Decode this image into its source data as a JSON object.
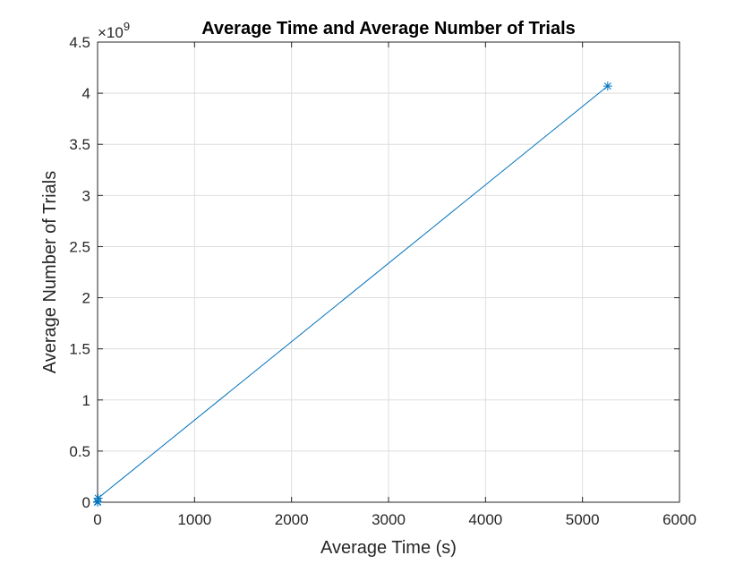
{
  "chart_data": {
    "type": "line",
    "title": "Average Time and Average Number of Trials",
    "xlabel": "Average Time (s)",
    "ylabel": "Average Number of Trials",
    "y_exponent_base": "×10",
    "y_exponent_power": "9",
    "xlim": [
      0,
      6000
    ],
    "ylim": [
      0,
      4.5
    ],
    "y_scale": 1000000000,
    "x_ticks": [
      "0",
      "1000",
      "2000",
      "3000",
      "4000",
      "5000",
      "6000"
    ],
    "y_ticks": [
      "0",
      "0.5",
      "1",
      "1.5",
      "2",
      "2.5",
      "3",
      "3.5",
      "4",
      "4.5"
    ],
    "grid": true,
    "marker": "asterisk",
    "color": "#0072BD",
    "series": [
      {
        "x": [
          0.005,
          0.05,
          0.5,
          5,
          5260
        ],
        "y": [
          1000,
          100000,
          4000000,
          40000000,
          4070000000
        ]
      }
    ]
  }
}
